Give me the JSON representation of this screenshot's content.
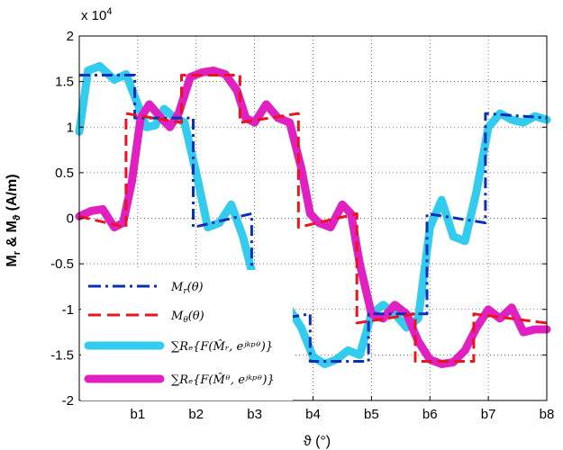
{
  "chart_data": {
    "type": "line",
    "title": "",
    "xlabel": "ϑ (°)",
    "ylabel": "M_r & M_ϑ (A/m)",
    "y_scale_label": "x 10^4",
    "ylim": [
      -2,
      2
    ],
    "xlim": [
      0,
      8
    ],
    "y_ticks": [
      "-2",
      "-1.5",
      "-1",
      "-0.5",
      "0",
      "0.5",
      "1",
      "1.5",
      "2"
    ],
    "x_ticks": [
      "b1",
      "b2",
      "b3",
      "b4",
      "b5",
      "b6",
      "b7",
      "b8"
    ],
    "grid": true,
    "legend_position": "bottom-left",
    "series": [
      {
        "name": "M_r(θ)",
        "style": "dash-dot",
        "color": "#0a2fb8",
        "x": [
          0,
          0.95,
          0.95,
          1.95,
          1.95,
          2.95,
          2.95,
          3.95,
          3.95,
          4.95,
          4.95,
          5.95,
          5.95,
          6.95,
          6.95,
          8
        ],
        "y": [
          1.57,
          1.57,
          1.1,
          1.1,
          -0.1,
          0.05,
          -1.15,
          -1.05,
          -1.57,
          -1.57,
          -1.05,
          -1.05,
          0.05,
          -0.05,
          1.15,
          1.1
        ]
      },
      {
        "name": "M_θ(θ)",
        "style": "dashed",
        "color": "#e8141e",
        "x": [
          0,
          0.8,
          0.8,
          1.75,
          1.75,
          2.75,
          2.75,
          3.75,
          3.75,
          4.75,
          4.75,
          5.75,
          5.75,
          6.75,
          6.75,
          8
        ],
        "y": [
          0.02,
          -0.1,
          1.15,
          1.05,
          1.57,
          1.57,
          1.05,
          1.15,
          -0.1,
          0.05,
          -1.15,
          -1.05,
          -1.57,
          -1.57,
          -1.05,
          -1.15
        ]
      },
      {
        "name": "∑Re{F(M̂_r, e^{jkpθ})}",
        "style": "thick",
        "color": "#33ccee",
        "x": [
          0,
          0.15,
          0.35,
          0.6,
          0.8,
          1.0,
          1.15,
          1.3,
          1.45,
          1.6,
          1.8,
          2.0,
          2.2,
          2.4,
          2.6,
          2.8,
          3.0,
          3.2,
          3.4,
          3.6,
          3.8,
          4.0,
          4.2,
          4.4,
          4.6,
          4.8,
          5.0,
          5.2,
          5.4,
          5.6,
          5.8,
          6.0,
          6.2,
          6.4,
          6.6,
          6.8,
          7.0,
          7.2,
          7.4,
          7.6,
          7.8,
          8.0
        ],
        "y": [
          0.95,
          1.62,
          1.67,
          1.52,
          1.58,
          1.25,
          1.0,
          1.02,
          1.2,
          1.12,
          1.05,
          0.5,
          -0.1,
          -0.05,
          0.15,
          -0.2,
          -0.7,
          -1.05,
          -1.1,
          -1.0,
          -1.2,
          -1.52,
          -1.6,
          -1.55,
          -1.45,
          -1.5,
          -1.05,
          -0.95,
          -1.05,
          -1.2,
          -1.1,
          -0.1,
          0.2,
          -0.2,
          -0.25,
          0.3,
          1.0,
          1.15,
          1.08,
          1.05,
          1.12,
          1.08
        ]
      },
      {
        "name": "∑Re{F(M̂_θ, e^{jkpθ})}",
        "style": "thick",
        "color": "#e020c0",
        "x": [
          0,
          0.2,
          0.4,
          0.6,
          0.75,
          0.9,
          1.05,
          1.2,
          1.4,
          1.55,
          1.7,
          1.9,
          2.1,
          2.3,
          2.5,
          2.7,
          2.85,
          3.0,
          3.2,
          3.4,
          3.6,
          3.8,
          3.95,
          4.1,
          4.3,
          4.5,
          4.65,
          4.8,
          5.0,
          5.2,
          5.4,
          5.6,
          5.8,
          6.0,
          6.2,
          6.4,
          6.6,
          6.8,
          7.0,
          7.2,
          7.4,
          7.6,
          7.8,
          8.0
        ],
        "y": [
          0.02,
          0.08,
          0.1,
          -0.1,
          -0.05,
          0.4,
          1.1,
          1.25,
          1.1,
          1.0,
          1.15,
          1.55,
          1.6,
          1.62,
          1.58,
          1.4,
          1.1,
          1.05,
          1.25,
          1.1,
          1.05,
          0.55,
          0.05,
          -0.05,
          -0.1,
          0.15,
          0.05,
          -0.5,
          -1.05,
          -1.1,
          -0.95,
          -1.05,
          -1.35,
          -1.55,
          -1.6,
          -1.58,
          -1.45,
          -1.2,
          -1.0,
          -1.1,
          -0.98,
          -1.25,
          -1.22,
          -1.22
        ]
      }
    ],
    "legend": [
      {
        "label_base": "M",
        "label_sub": "r",
        "label_arg": "(θ)",
        "series_index": 0
      },
      {
        "label_base": "M",
        "label_sub": "θ",
        "label_arg": "(θ)",
        "series_index": 1
      },
      {
        "label_text": "∑Rₑ{F(M̂ᵣ, eʲᵏᵖᶿ)}",
        "series_index": 2
      },
      {
        "label_text": "∑Rₑ{F(M̂ᶿ, eʲᵏᵖᶿ)}",
        "series_index": 3
      }
    ]
  }
}
